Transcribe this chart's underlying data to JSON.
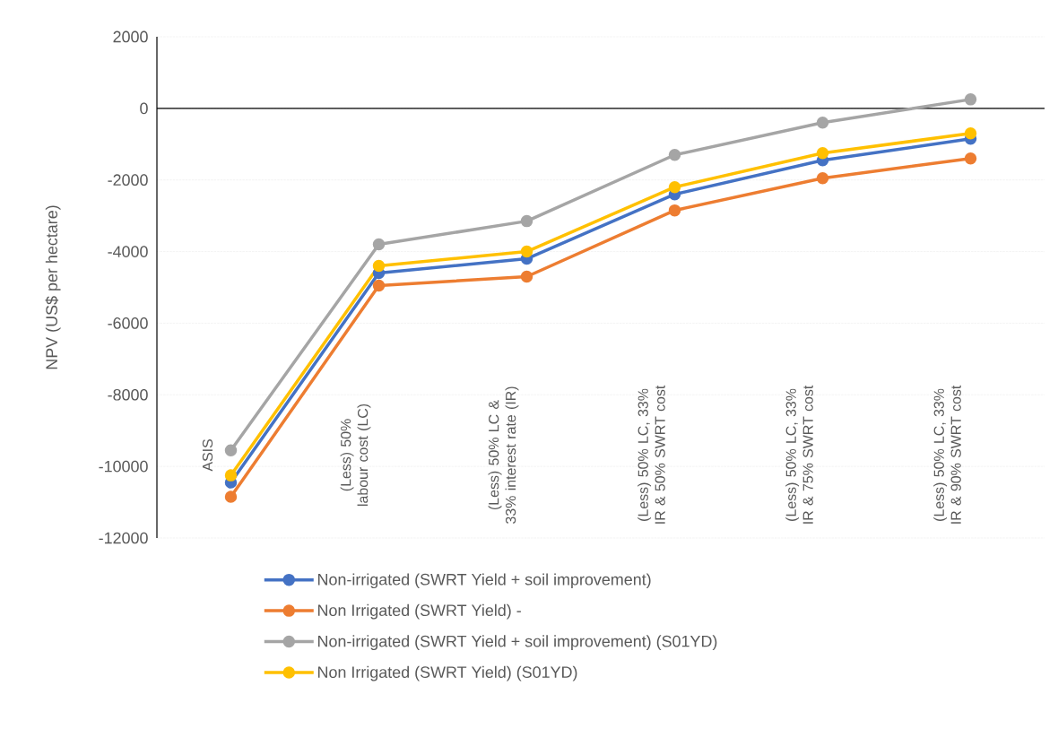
{
  "chart_data": {
    "type": "line",
    "ylabel": "NPV (US$ per hectare)",
    "categories": [
      "ASIS",
      "(Less) 50% labour cost (LC)",
      "(Less) 50% LC & 33% interest rate (IR)",
      "(Less)  50% LC, 33% IR & 50% SWRT cost",
      "(Less)  50% LC, 33% IR & 75% SWRT cost",
      "(Less)  50% LC, 33% IR & 90% SWRT cost"
    ],
    "series": [
      {
        "name": "Non-irrigated (SWRT Yield + soil improvement)",
        "color": "#4472c4",
        "values": [
          -10450,
          -4600,
          -4200,
          -2400,
          -1450,
          -850
        ]
      },
      {
        "name": "Non Irrigated (SWRT Yield) -",
        "color": "#ed7d31",
        "values": [
          -10850,
          -4950,
          -4700,
          -2850,
          -1950,
          -1400
        ]
      },
      {
        "name": "Non-irrigated (SWRT Yield + soil improvement)  (S01YD)",
        "color": "#a5a5a5",
        "values": [
          -9550,
          -3800,
          -3150,
          -1300,
          -400,
          250
        ]
      },
      {
        "name": "Non Irrigated (SWRT Yield) (S01YD)",
        "color": "#ffc000",
        "values": [
          -10250,
          -4400,
          -4000,
          -2200,
          -1250,
          -700
        ]
      }
    ],
    "ylim": [
      -12000,
      2000
    ],
    "yticks": [
      -12000,
      -10000,
      -8000,
      -6000,
      -4000,
      -2000,
      0,
      2000
    ],
    "grid": "y",
    "legend": "bottom",
    "marker": "circle"
  }
}
